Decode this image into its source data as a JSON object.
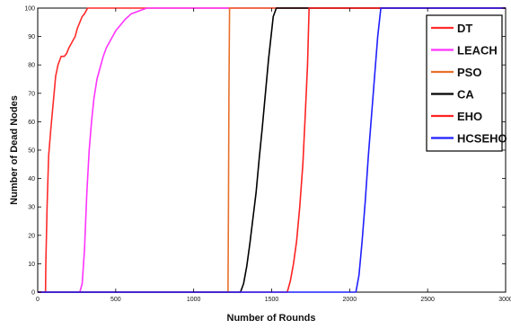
{
  "chart_data": {
    "type": "line",
    "xlabel": "Number of Rounds",
    "ylabel": "Number of Dead Nodes",
    "xlim": [
      0,
      3000
    ],
    "ylim": [
      0,
      100
    ],
    "xticks": [
      0,
      500,
      1000,
      1500,
      2000,
      2500,
      3000
    ],
    "yticks": [
      0,
      10,
      20,
      30,
      40,
      50,
      60,
      70,
      80,
      90,
      100
    ],
    "grid": false,
    "legend_position": "top-right",
    "series": [
      {
        "name": "DT",
        "color": "#ff2b2b",
        "x": [
          0,
          50,
          52,
          60,
          70,
          85,
          100,
          115,
          130,
          150,
          170,
          185,
          200,
          220,
          240,
          255,
          270,
          285,
          300,
          320,
          3000
        ],
        "y": [
          0,
          0,
          10,
          30,
          48,
          58,
          67,
          76,
          80,
          83,
          83,
          84,
          86,
          88,
          90,
          93,
          95,
          97,
          98,
          100,
          100
        ]
      },
      {
        "name": "LEACH",
        "color": "#ff33ff",
        "x": [
          0,
          270,
          285,
          300,
          315,
          330,
          345,
          360,
          380,
          400,
          420,
          440,
          460,
          480,
          500,
          530,
          560,
          600,
          650,
          700,
          740,
          3000
        ],
        "y": [
          0,
          0,
          3,
          15,
          35,
          50,
          60,
          68,
          75,
          79,
          83,
          86,
          88,
          90,
          92,
          94,
          96,
          98,
          99,
          100,
          100,
          100
        ]
      },
      {
        "name": "PSO",
        "color": "#e8702a",
        "x": [
          0,
          1220,
          1223,
          1226,
          1230,
          3000
        ],
        "y": [
          0,
          0,
          30,
          70,
          100,
          100
        ]
      },
      {
        "name": "CA",
        "color": "#000000",
        "x": [
          0,
          1300,
          1320,
          1340,
          1360,
          1380,
          1400,
          1420,
          1440,
          1460,
          1480,
          1500,
          1510,
          1530,
          3000
        ],
        "y": [
          0,
          0,
          3,
          9,
          17,
          26,
          35,
          47,
          58,
          70,
          82,
          92,
          97,
          100,
          100
        ]
      },
      {
        "name": "EHO",
        "color": "#ff2222",
        "x": [
          0,
          1600,
          1620,
          1640,
          1660,
          1680,
          1700,
          1715,
          1730,
          1740,
          3000
        ],
        "y": [
          0,
          0,
          4,
          10,
          18,
          30,
          45,
          62,
          80,
          100,
          100
        ]
      },
      {
        "name": "HCSEHO",
        "color": "#1f1fff",
        "x": [
          0,
          2040,
          2060,
          2080,
          2100,
          2120,
          2140,
          2160,
          2180,
          2200,
          3000
        ],
        "y": [
          0,
          0,
          6,
          18,
          32,
          48,
          62,
          76,
          90,
          100,
          100
        ]
      }
    ]
  }
}
